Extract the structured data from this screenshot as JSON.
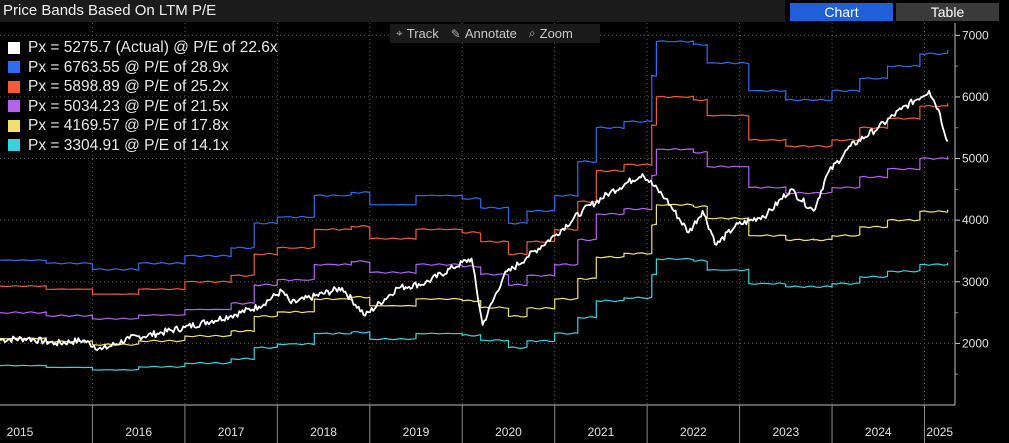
{
  "header": {
    "title": "Price Bands Based On LTM P/E",
    "tabs": [
      {
        "label": "Chart",
        "active": true
      },
      {
        "label": "Table",
        "active": false
      }
    ]
  },
  "toolbar": {
    "items": [
      {
        "label": "Track",
        "icon": "crosshair-icon"
      },
      {
        "label": "Annotate",
        "icon": "pencil-icon"
      },
      {
        "label": "Zoom",
        "icon": "magnifier-icon"
      }
    ]
  },
  "colors": {
    "background": "#000000",
    "actual": "#ffffff",
    "pe_28_9": "#2f6cf2",
    "pe_25_2": "#f05b3a",
    "pe_21_5": "#b462f0",
    "pe_17_8": "#f0e16c",
    "pe_14_1": "#35d3e0",
    "grid": "#5a5a5a"
  },
  "chart_data": {
    "type": "line",
    "title": "Price Bands Based On LTM P/E",
    "x_axis": {
      "ticks": [
        "2015",
        "2016",
        "2017",
        "2018",
        "2019",
        "2020",
        "2021",
        "2022",
        "2023",
        "2024",
        "2025"
      ],
      "range": [
        2015.0,
        2025.33
      ]
    },
    "y_axis": {
      "ticks": [
        2000,
        3000,
        4000,
        5000,
        6000,
        7000
      ],
      "range": [
        1000,
        7200
      ],
      "position": "right"
    },
    "grid": true,
    "legend_placement": "top-left",
    "series": [
      {
        "name": "Px = 5275.7 (Actual) @ P/E of 22.6x",
        "color_key": "actual",
        "style": "noisy",
        "points": [
          [
            2015.0,
            2060
          ],
          [
            2015.3,
            2080
          ],
          [
            2015.6,
            2000
          ],
          [
            2015.9,
            2050
          ],
          [
            2016.1,
            1900
          ],
          [
            2016.4,
            2080
          ],
          [
            2016.7,
            2160
          ],
          [
            2017.0,
            2260
          ],
          [
            2017.5,
            2450
          ],
          [
            2017.8,
            2600
          ],
          [
            2018.05,
            2850
          ],
          [
            2018.15,
            2650
          ],
          [
            2018.7,
            2900
          ],
          [
            2018.95,
            2450
          ],
          [
            2019.3,
            2900
          ],
          [
            2019.6,
            2980
          ],
          [
            2019.9,
            3230
          ],
          [
            2020.1,
            3380
          ],
          [
            2020.22,
            2300
          ],
          [
            2020.45,
            3100
          ],
          [
            2020.7,
            3400
          ],
          [
            2021.0,
            3750
          ],
          [
            2021.3,
            4150
          ],
          [
            2021.6,
            4450
          ],
          [
            2021.95,
            4750
          ],
          [
            2022.2,
            4350
          ],
          [
            2022.45,
            3800
          ],
          [
            2022.6,
            4150
          ],
          [
            2022.75,
            3600
          ],
          [
            2022.95,
            3900
          ],
          [
            2023.3,
            4100
          ],
          [
            2023.55,
            4500
          ],
          [
            2023.8,
            4150
          ],
          [
            2023.95,
            4750
          ],
          [
            2024.2,
            5200
          ],
          [
            2024.5,
            5500
          ],
          [
            2024.75,
            5800
          ],
          [
            2025.05,
            6100
          ],
          [
            2025.15,
            5800
          ],
          [
            2025.25,
            5275.7
          ]
        ]
      },
      {
        "name": "Px = 6763.55 @ P/E of 28.9x",
        "color_key": "pe_28_9",
        "style": "band",
        "points": [
          [
            2015.0,
            3350
          ],
          [
            2015.5,
            3300
          ],
          [
            2016.0,
            3200
          ],
          [
            2016.5,
            3300
          ],
          [
            2017.0,
            3420
          ],
          [
            2017.5,
            3550
          ],
          [
            2017.75,
            3950
          ],
          [
            2018.0,
            4050
          ],
          [
            2018.4,
            4400
          ],
          [
            2018.8,
            4450
          ],
          [
            2019.0,
            4250
          ],
          [
            2019.5,
            4400
          ],
          [
            2020.0,
            4350
          ],
          [
            2020.2,
            4200
          ],
          [
            2020.5,
            3950
          ],
          [
            2020.7,
            4150
          ],
          [
            2021.0,
            4400
          ],
          [
            2021.25,
            4950
          ],
          [
            2021.45,
            5500
          ],
          [
            2021.75,
            5600
          ],
          [
            2022.05,
            6350
          ],
          [
            2022.1,
            6900
          ],
          [
            2022.5,
            6850
          ],
          [
            2022.65,
            6550
          ],
          [
            2023.1,
            6100
          ],
          [
            2023.5,
            5950
          ],
          [
            2023.8,
            5950
          ],
          [
            2024.0,
            6100
          ],
          [
            2024.3,
            6300
          ],
          [
            2024.6,
            6500
          ],
          [
            2024.95,
            6700
          ],
          [
            2025.25,
            6763.55
          ]
        ]
      },
      {
        "name": "Px = 5898.89 @ P/E of 25.2x",
        "color_key": "pe_25_2",
        "style": "band",
        "points": [
          [
            2015.0,
            2930
          ],
          [
            2015.5,
            2880
          ],
          [
            2016.0,
            2800
          ],
          [
            2016.5,
            2880
          ],
          [
            2017.0,
            3000
          ],
          [
            2017.5,
            3100
          ],
          [
            2017.75,
            3450
          ],
          [
            2018.0,
            3550
          ],
          [
            2018.4,
            3850
          ],
          [
            2018.8,
            3900
          ],
          [
            2019.0,
            3700
          ],
          [
            2019.5,
            3850
          ],
          [
            2020.0,
            3800
          ],
          [
            2020.2,
            3650
          ],
          [
            2020.5,
            3450
          ],
          [
            2020.7,
            3650
          ],
          [
            2021.0,
            3850
          ],
          [
            2021.25,
            4300
          ],
          [
            2021.45,
            4800
          ],
          [
            2021.75,
            4900
          ],
          [
            2022.05,
            5550
          ],
          [
            2022.1,
            6000
          ],
          [
            2022.5,
            5950
          ],
          [
            2022.65,
            5700
          ],
          [
            2023.1,
            5300
          ],
          [
            2023.5,
            5200
          ],
          [
            2023.8,
            5200
          ],
          [
            2024.0,
            5300
          ],
          [
            2024.3,
            5500
          ],
          [
            2024.6,
            5650
          ],
          [
            2024.95,
            5850
          ],
          [
            2025.25,
            5898.89
          ]
        ]
      },
      {
        "name": "Px = 5034.23 @ P/E of 21.5x",
        "color_key": "pe_21_5",
        "style": "band",
        "points": [
          [
            2015.0,
            2500
          ],
          [
            2015.5,
            2450
          ],
          [
            2016.0,
            2400
          ],
          [
            2016.5,
            2460
          ],
          [
            2017.0,
            2550
          ],
          [
            2017.5,
            2650
          ],
          [
            2017.75,
            2950
          ],
          [
            2018.0,
            3030
          ],
          [
            2018.4,
            3280
          ],
          [
            2018.8,
            3330
          ],
          [
            2019.0,
            3150
          ],
          [
            2019.5,
            3280
          ],
          [
            2020.0,
            3250
          ],
          [
            2020.2,
            3120
          ],
          [
            2020.5,
            2950
          ],
          [
            2020.7,
            3100
          ],
          [
            2021.0,
            3280
          ],
          [
            2021.25,
            3680
          ],
          [
            2021.45,
            4100
          ],
          [
            2021.75,
            4180
          ],
          [
            2022.05,
            4730
          ],
          [
            2022.1,
            5150
          ],
          [
            2022.5,
            5100
          ],
          [
            2022.65,
            4870
          ],
          [
            2023.1,
            4530
          ],
          [
            2023.5,
            4440
          ],
          [
            2023.8,
            4440
          ],
          [
            2024.0,
            4530
          ],
          [
            2024.3,
            4700
          ],
          [
            2024.6,
            4830
          ],
          [
            2024.95,
            5000
          ],
          [
            2025.25,
            5034.23
          ]
        ]
      },
      {
        "name": "Px = 4169.57 @ P/E of 17.8x",
        "color_key": "pe_17_8",
        "style": "band",
        "points": [
          [
            2015.0,
            2080
          ],
          [
            2015.5,
            2030
          ],
          [
            2016.0,
            1980
          ],
          [
            2016.5,
            2040
          ],
          [
            2017.0,
            2120
          ],
          [
            2017.5,
            2200
          ],
          [
            2017.75,
            2440
          ],
          [
            2018.0,
            2510
          ],
          [
            2018.4,
            2720
          ],
          [
            2018.8,
            2750
          ],
          [
            2019.0,
            2610
          ],
          [
            2019.5,
            2720
          ],
          [
            2020.0,
            2690
          ],
          [
            2020.2,
            2580
          ],
          [
            2020.5,
            2440
          ],
          [
            2020.7,
            2570
          ],
          [
            2021.0,
            2720
          ],
          [
            2021.25,
            3050
          ],
          [
            2021.45,
            3400
          ],
          [
            2021.75,
            3460
          ],
          [
            2022.05,
            3920
          ],
          [
            2022.1,
            4250
          ],
          [
            2022.5,
            4220
          ],
          [
            2022.65,
            4030
          ],
          [
            2023.1,
            3750
          ],
          [
            2023.5,
            3680
          ],
          [
            2023.8,
            3680
          ],
          [
            2024.0,
            3750
          ],
          [
            2024.3,
            3890
          ],
          [
            2024.6,
            4000
          ],
          [
            2024.95,
            4140
          ],
          [
            2025.25,
            4169.57
          ]
        ]
      },
      {
        "name": "Px = 3304.91 @ P/E of 14.1x",
        "color_key": "pe_14_1",
        "style": "band",
        "points": [
          [
            2015.0,
            1640
          ],
          [
            2015.5,
            1610
          ],
          [
            2016.0,
            1570
          ],
          [
            2016.5,
            1620
          ],
          [
            2017.0,
            1680
          ],
          [
            2017.5,
            1750
          ],
          [
            2017.75,
            1930
          ],
          [
            2018.0,
            1990
          ],
          [
            2018.4,
            2160
          ],
          [
            2018.8,
            2180
          ],
          [
            2019.0,
            2070
          ],
          [
            2019.5,
            2160
          ],
          [
            2020.0,
            2130
          ],
          [
            2020.2,
            2050
          ],
          [
            2020.5,
            1930
          ],
          [
            2020.7,
            2040
          ],
          [
            2021.0,
            2160
          ],
          [
            2021.25,
            2420
          ],
          [
            2021.45,
            2690
          ],
          [
            2021.75,
            2740
          ],
          [
            2022.05,
            3110
          ],
          [
            2022.1,
            3370
          ],
          [
            2022.5,
            3340
          ],
          [
            2022.65,
            3190
          ],
          [
            2023.1,
            2970
          ],
          [
            2023.5,
            2920
          ],
          [
            2023.8,
            2920
          ],
          [
            2024.0,
            2970
          ],
          [
            2024.3,
            3080
          ],
          [
            2024.6,
            3170
          ],
          [
            2024.95,
            3280
          ],
          [
            2025.25,
            3304.91
          ]
        ]
      }
    ]
  }
}
